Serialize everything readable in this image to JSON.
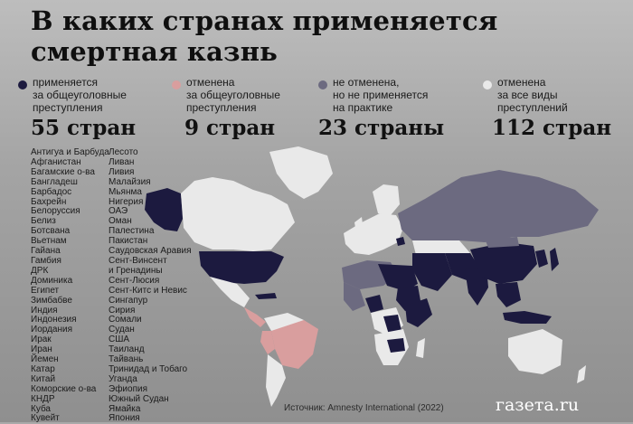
{
  "title": "В каких странах применяется смертная казнь",
  "colors": {
    "applied": "#1c1a3f",
    "abolished_ordinary": "#d99e9e",
    "not_practiced": "#6c6a80",
    "abolished_all": "#e9e9e9",
    "no_data": "#b5b5b5"
  },
  "legend": [
    {
      "label": "применяется за общеуголовные преступления",
      "count": "55 стран"
    },
    {
      "label": "отменена за общеуголовные преступления",
      "count": "9 стран"
    },
    {
      "label": "не отменена, но не применяется на практике",
      "count": "23 страны"
    },
    {
      "label": "отменена за все виды преступлений",
      "count": "112 стран"
    }
  ],
  "legend_lines": [
    [
      "применяется",
      "за общеуголовные",
      "преступления"
    ],
    [
      "отменена",
      "за общеуголовные",
      "преступления"
    ],
    [
      "не отменена,",
      "но не применяется",
      "на практике"
    ],
    [
      "отменена",
      "за все виды",
      "преступлений"
    ]
  ],
  "countries_col1": [
    "Антигуа и Барбуда",
    "Афганистан",
    "Багамские о-ва",
    "Бангладеш",
    "Барбадос",
    "Бахрейн",
    "Белоруссия",
    "Белиз",
    "Ботсвана",
    "Вьетнам",
    "Гайана",
    "Гамбия",
    "ДРК",
    "Доминика",
    "Египет",
    "Зимбабве",
    "Индия",
    "Индонезия",
    "Иордания",
    "Ирак",
    "Иран",
    "Йемен",
    "Катар",
    "Китай",
    "Коморские о-ва",
    "КНДР",
    "Куба",
    "Кувейт"
  ],
  "countries_col2": [
    "Лесото",
    "Ливан",
    "Ливия",
    "Малайзия",
    "Мьянма",
    "Нигерия",
    "ОАЭ",
    "Оман",
    "Палестина",
    "Пакистан",
    "Саудовская Аравия",
    "Сент-Винсент",
    "и Гренадины",
    "Сент-Люсия",
    "Сент-Китс и Невис",
    "Сингапур",
    "Сирия",
    "Сомали",
    "Судан",
    "США",
    "Таиланд",
    "Тайвань",
    "Тринидад и Тобаго",
    "Уганда",
    "Эфиопия",
    "Южный Судан",
    "Ямайка",
    "Япония"
  ],
  "source": "Источник: Amnesty International (2022)",
  "logo": "газета.ru"
}
